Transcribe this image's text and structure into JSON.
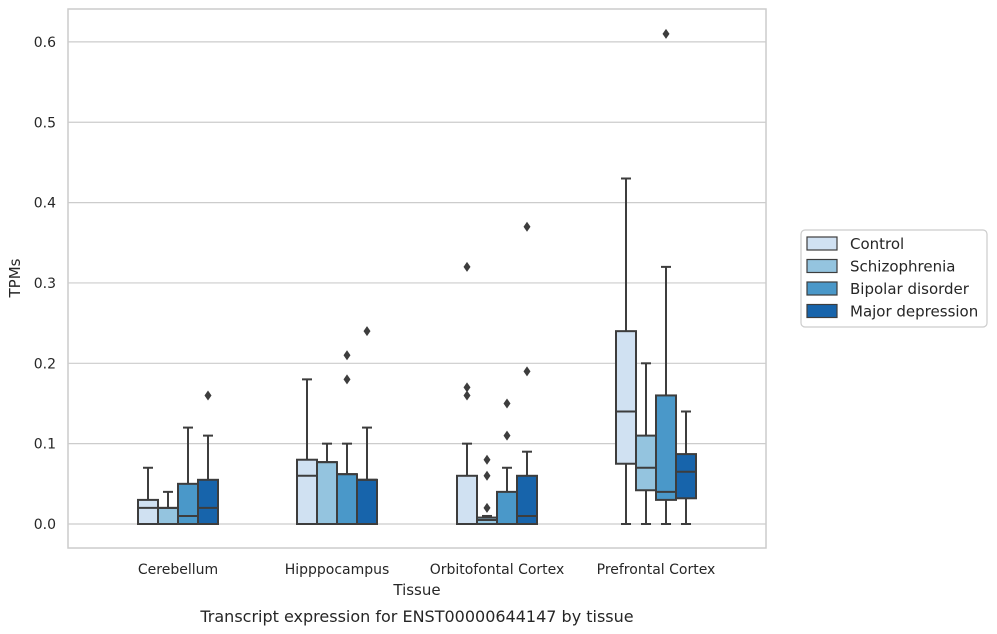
{
  "chart_data": {
    "type": "box",
    "xlabel": "Tissue",
    "ylabel": "TPMs",
    "caption": "Transcript expression for ENST00000644147 by tissue",
    "ylim": [
      -0.03,
      0.64
    ],
    "yticks": [
      "0.0",
      "0.1",
      "0.2",
      "0.3",
      "0.4",
      "0.5",
      "0.6"
    ],
    "grid": "horizontal",
    "legend_position": "right",
    "categories": [
      "Cerebellum",
      "Hipppocampus",
      "Orbitofontal Cortex",
      "Prefrontal Cortex"
    ],
    "series": [
      {
        "name": "Control",
        "color": "#d0e1f2",
        "boxes": [
          {
            "whisker_low": 0.0,
            "q1": 0.0,
            "median": 0.02,
            "q3": 0.03,
            "whisker_high": 0.07,
            "outliers": []
          },
          {
            "whisker_low": 0.0,
            "q1": 0.0,
            "median": 0.06,
            "q3": 0.08,
            "whisker_high": 0.18,
            "outliers": []
          },
          {
            "whisker_low": 0.0,
            "q1": 0.0,
            "median": 0.0,
            "q3": 0.06,
            "whisker_high": 0.1,
            "outliers": [
              0.16,
              0.17,
              0.32
            ]
          },
          {
            "whisker_low": 0.0,
            "q1": 0.075,
            "median": 0.14,
            "q3": 0.24,
            "whisker_high": 0.43,
            "outliers": []
          }
        ]
      },
      {
        "name": "Schizophrenia",
        "color": "#94c4df",
        "boxes": [
          {
            "whisker_low": 0.0,
            "q1": 0.0,
            "median": 0.02,
            "q3": 0.02,
            "whisker_high": 0.04,
            "outliers": []
          },
          {
            "whisker_low": 0.0,
            "q1": 0.0,
            "median": 0.077,
            "q3": 0.077,
            "whisker_high": 0.1,
            "outliers": []
          },
          {
            "whisker_low": 0.0,
            "q1": 0.0,
            "median": 0.005,
            "q3": 0.008,
            "whisker_high": 0.01,
            "outliers": [
              0.02,
              0.06,
              0.08
            ]
          },
          {
            "whisker_low": 0.0,
            "q1": 0.042,
            "median": 0.07,
            "q3": 0.11,
            "whisker_high": 0.2,
            "outliers": []
          }
        ]
      },
      {
        "name": "Bipolar disorder",
        "color": "#4a98c9",
        "boxes": [
          {
            "whisker_low": 0.0,
            "q1": 0.0,
            "median": 0.01,
            "q3": 0.05,
            "whisker_high": 0.12,
            "outliers": []
          },
          {
            "whisker_low": 0.0,
            "q1": 0.0,
            "median": 0.062,
            "q3": 0.062,
            "whisker_high": 0.1,
            "outliers": [
              0.18,
              0.21
            ]
          },
          {
            "whisker_low": 0.0,
            "q1": 0.0,
            "median": 0.0,
            "q3": 0.04,
            "whisker_high": 0.07,
            "outliers": [
              0.11,
              0.15
            ]
          },
          {
            "whisker_low": 0.0,
            "q1": 0.03,
            "median": 0.04,
            "q3": 0.16,
            "whisker_high": 0.32,
            "outliers": [
              0.61
            ]
          }
        ]
      },
      {
        "name": "Major depression",
        "color": "#1764ab",
        "boxes": [
          {
            "whisker_low": 0.0,
            "q1": 0.0,
            "median": 0.02,
            "q3": 0.055,
            "whisker_high": 0.11,
            "outliers": [
              0.16
            ]
          },
          {
            "whisker_low": 0.0,
            "q1": 0.0,
            "median": 0.055,
            "q3": 0.055,
            "whisker_high": 0.12,
            "outliers": [
              0.24
            ]
          },
          {
            "whisker_low": 0.0,
            "q1": 0.0,
            "median": 0.01,
            "q3": 0.06,
            "whisker_high": 0.09,
            "outliers": [
              0.19,
              0.37
            ]
          },
          {
            "whisker_low": 0.0,
            "q1": 0.032,
            "median": 0.065,
            "q3": 0.087,
            "whisker_high": 0.14,
            "outliers": []
          }
        ]
      }
    ]
  }
}
